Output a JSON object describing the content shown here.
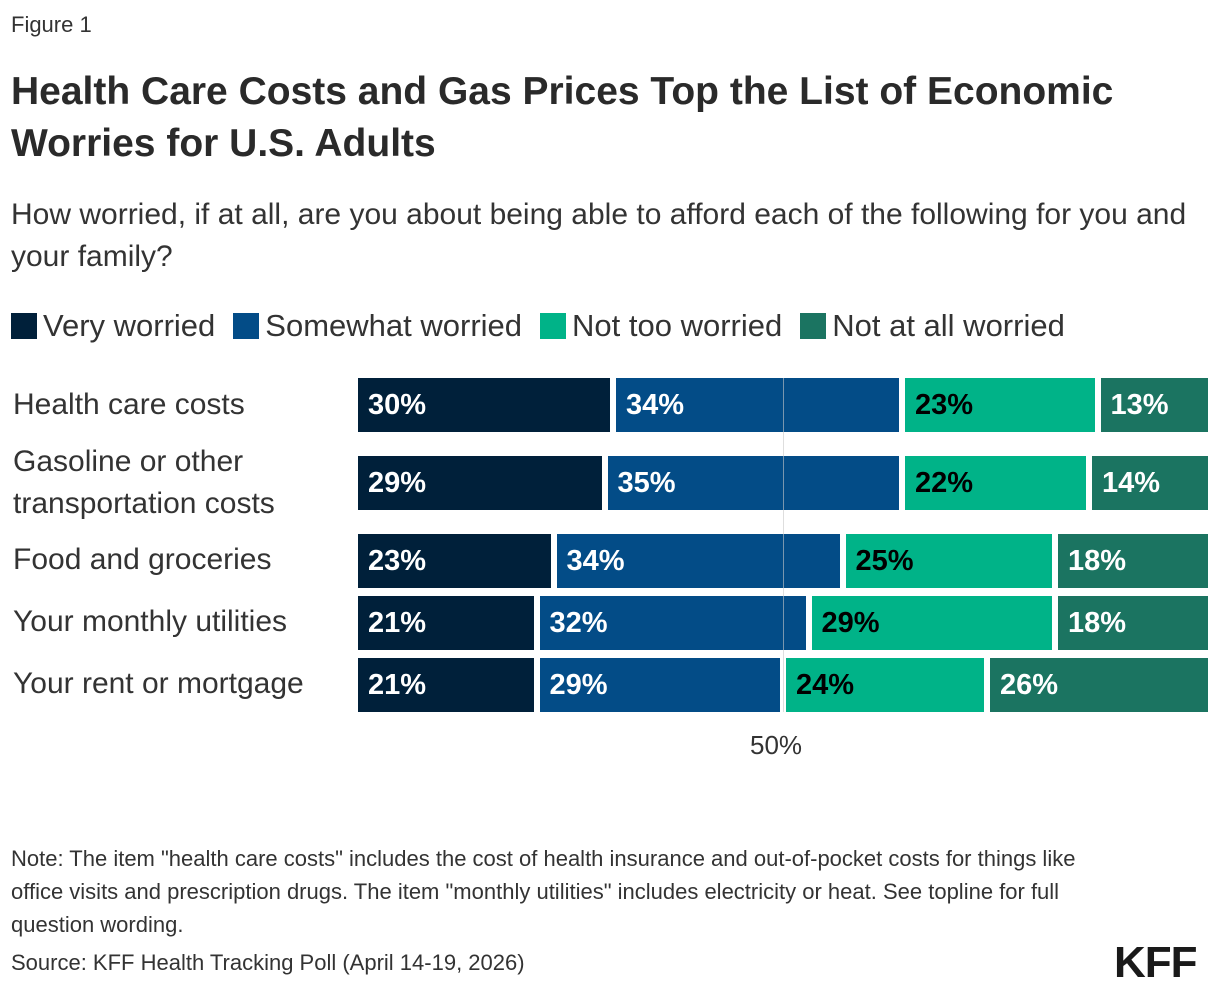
{
  "figure_label": "Figure 1",
  "title": "Health Care Costs and Gas Prices Top the List of Economic Worries for U.S. Adults",
  "subtitle": "How worried, if at all, are you about being able to afford each of the following for you and your family?",
  "chart_data": {
    "type": "bar",
    "orientation": "horizontal",
    "stacked": true,
    "categories": [
      "Health care costs",
      "Gasoline or other transportation costs",
      "Food and groceries",
      "Your monthly utilities",
      "Your rent or mortgage"
    ],
    "series": [
      {
        "name": "Very worried",
        "color": "#00203a",
        "label_color": "#ffffff",
        "values": [
          30,
          29,
          23,
          21,
          21
        ]
      },
      {
        "name": "Somewhat worried",
        "color": "#034c87",
        "label_color": "#ffffff",
        "values": [
          34,
          35,
          34,
          32,
          29
        ]
      },
      {
        "name": "Not too worried",
        "color": "#00b388",
        "label_color": "#000000",
        "values": [
          23,
          22,
          25,
          29,
          24
        ]
      },
      {
        "name": "Not at all worried",
        "color": "#1b7461",
        "label_color": "#ffffff",
        "values": [
          13,
          14,
          18,
          18,
          26
        ]
      }
    ],
    "xlim": [
      0,
      100
    ],
    "reference_line": 50,
    "tick_label": "50%",
    "legend_position": "top",
    "grid": false
  },
  "note": "Note: The item \"health care costs\" includes the cost of health insurance and out-of-pocket costs for things like office visits and prescription drugs. The item \"monthly utilities\" includes electricity or heat. See topline for full question wording.",
  "source": "Source: KFF Health Tracking Poll (April 14-19, 2026)",
  "logo": "KFF"
}
